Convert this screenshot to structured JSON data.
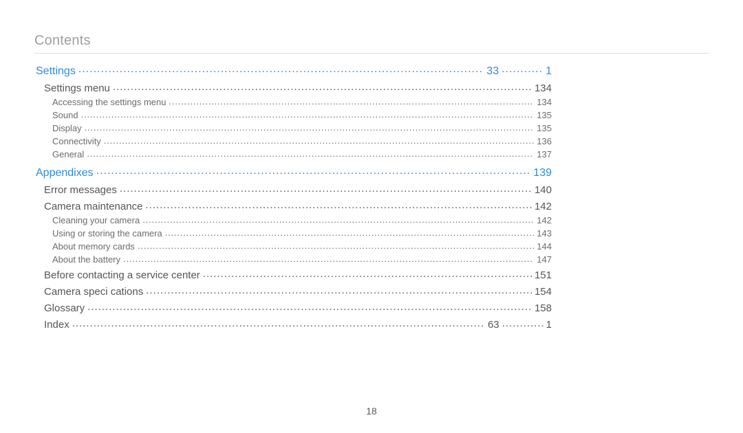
{
  "header": {
    "title": "Contents"
  },
  "page_number": "18",
  "toc": [
    {
      "label": "Settings",
      "page": "1",
      "mid": "33",
      "level": "chapter"
    },
    {
      "label": "Settings menu",
      "page": "134",
      "level": "section"
    },
    {
      "label": "Accessing the settings menu",
      "page": "134",
      "level": "sub"
    },
    {
      "label": "Sound",
      "page": "135",
      "level": "sub"
    },
    {
      "label": "Display",
      "page": "135",
      "level": "sub"
    },
    {
      "label": "Connectivity",
      "page": "136",
      "level": "sub"
    },
    {
      "label": "General",
      "page": "137",
      "level": "sub"
    },
    {
      "label": "Appendixes",
      "page": "139",
      "level": "chapter"
    },
    {
      "label": "Error messages",
      "page": "140",
      "level": "section"
    },
    {
      "label": "Camera maintenance",
      "page": "142",
      "level": "section"
    },
    {
      "label": "Cleaning your camera",
      "page": "142",
      "level": "sub"
    },
    {
      "label": "Using or storing the camera",
      "page": "143",
      "level": "sub"
    },
    {
      "label": "About memory cards",
      "page": "144",
      "level": "sub"
    },
    {
      "label": "About the battery",
      "page": "147",
      "level": "sub"
    },
    {
      "label": "Before contacting a service center",
      "page": "151",
      "level": "section"
    },
    {
      "label": "Camera speci cations",
      "page": "154",
      "level": "section"
    },
    {
      "label": "Glossary",
      "page": "158",
      "level": "section"
    },
    {
      "label": "Index",
      "page": "1",
      "mid": "63",
      "level": "section"
    }
  ],
  "colors": {
    "link": "#2f8ad8",
    "text": "#555555",
    "subtext": "#6b6b6b",
    "muted": "#9e9e9e",
    "rule": "#dcdcdc",
    "background": "#ffffff"
  }
}
